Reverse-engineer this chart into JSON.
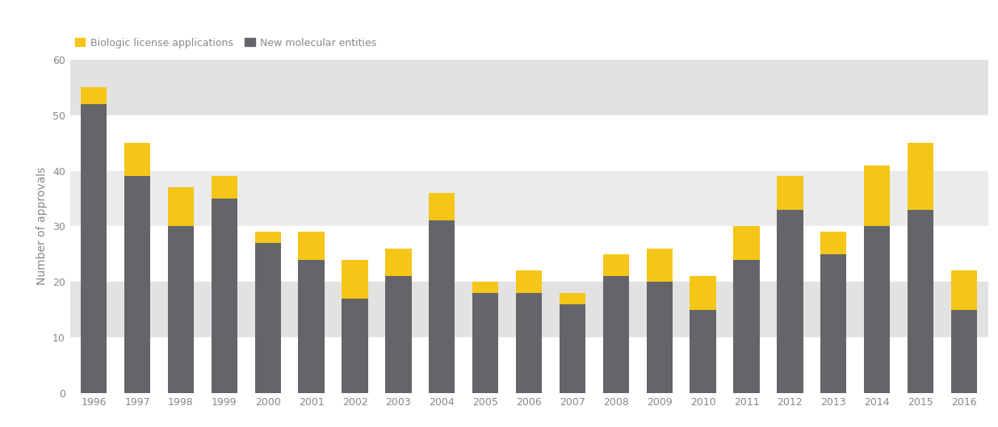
{
  "years": [
    1996,
    1997,
    1998,
    1999,
    2000,
    2001,
    2002,
    2003,
    2004,
    2005,
    2006,
    2007,
    2008,
    2009,
    2010,
    2011,
    2012,
    2013,
    2014,
    2015,
    2016
  ],
  "nme": [
    52,
    39,
    30,
    35,
    27,
    24,
    17,
    21,
    31,
    18,
    18,
    16,
    21,
    20,
    15,
    24,
    33,
    25,
    30,
    33,
    15
  ],
  "bla": [
    3,
    6,
    7,
    4,
    2,
    5,
    7,
    5,
    5,
    2,
    4,
    2,
    4,
    6,
    6,
    6,
    6,
    4,
    11,
    12,
    7
  ],
  "bar_color_nme": "#636569",
  "bar_color_bla": "#F5C518",
  "background_color": "#ffffff",
  "band_colors_ordered": [
    "#e2e2e2",
    "#ffffff",
    "#ebebeb",
    "#ffffff",
    "#e2e2e2",
    "#ffffff"
  ],
  "band_ranges_ordered": [
    [
      50,
      60
    ],
    [
      40,
      50
    ],
    [
      30,
      40
    ],
    [
      20,
      30
    ],
    [
      10,
      20
    ],
    [
      0,
      10
    ]
  ],
  "ylabel": "Number of approvals",
  "ylim": [
    0,
    60
  ],
  "yticks": [
    0,
    10,
    20,
    30,
    40,
    50,
    60
  ],
  "legend_label_bla": "Biologic license applications",
  "legend_label_nme": "New molecular entities",
  "tick_fontsize": 9,
  "axis_fontsize": 10,
  "figsize": [
    12.36,
    5.29
  ],
  "dpi": 100,
  "bar_width": 0.6
}
